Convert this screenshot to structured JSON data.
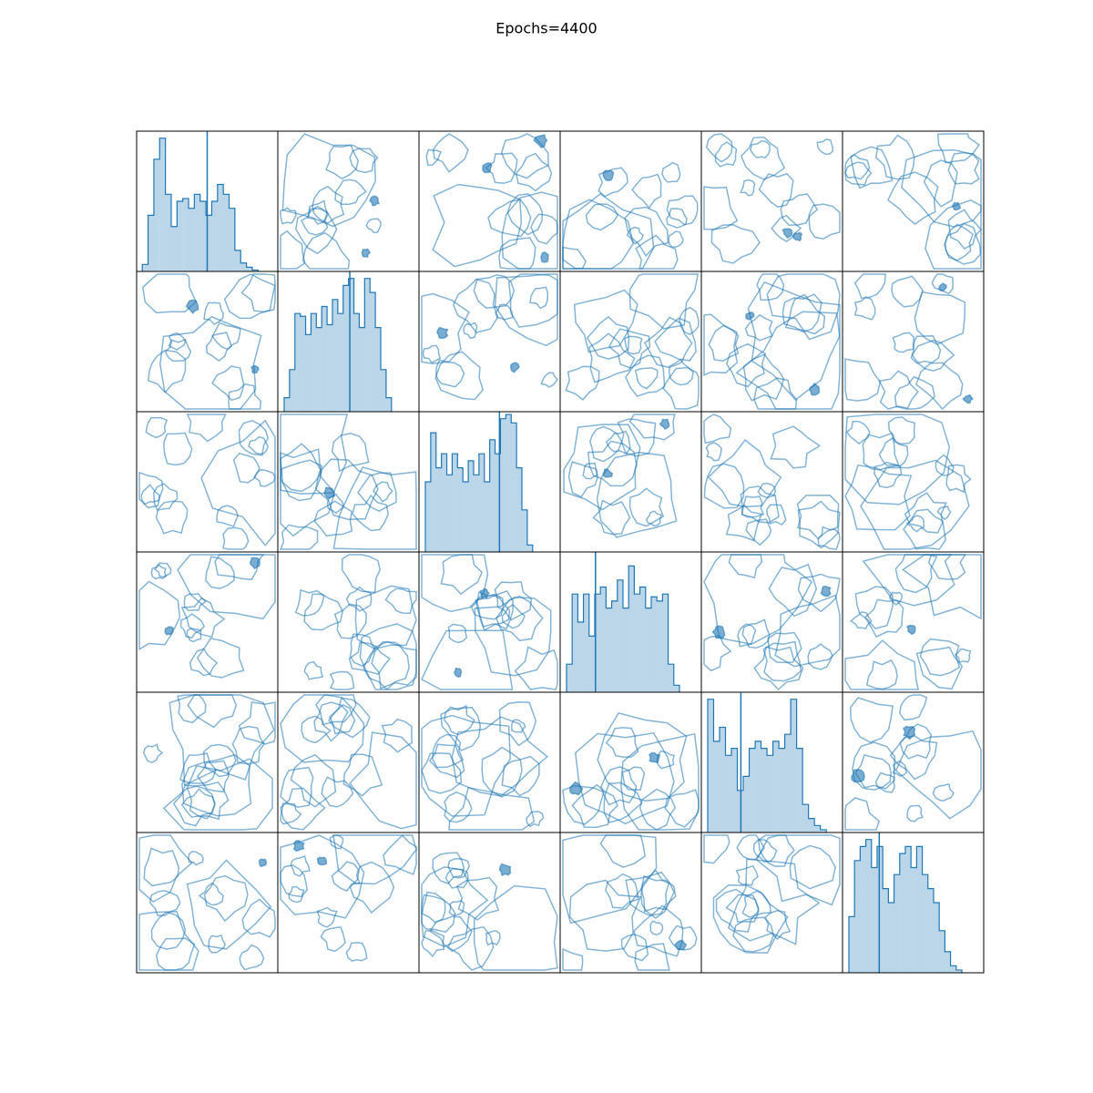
{
  "chart_data": {
    "type": "pairplot",
    "title": "Epochs=4400",
    "color": "#1f77b4",
    "xlim": [
      0,
      1
    ],
    "ylim": [
      0,
      1
    ],
    "histograms": [
      {
        "bins": [
          0.04,
          0.081,
          0.122,
          0.163,
          0.204,
          0.245,
          0.286,
          0.327,
          0.368,
          0.409,
          0.45,
          0.491,
          0.532,
          0.573,
          0.614,
          0.655,
          0.696,
          0.737,
          0.778,
          0.819,
          0.86
        ],
        "counts": [
          0.05,
          0.4,
          0.8,
          0.95,
          0.55,
          0.32,
          0.5,
          0.52,
          0.45,
          0.55,
          0.5,
          0.4,
          0.5,
          0.62,
          0.55,
          0.45,
          0.15,
          0.06,
          0.03,
          0.01
        ],
        "marker": 0.5
      },
      {
        "bins": [
          0.045,
          0.083,
          0.121,
          0.159,
          0.197,
          0.235,
          0.273,
          0.311,
          0.349,
          0.387,
          0.425,
          0.463,
          0.501,
          0.539,
          0.577,
          0.615,
          0.653,
          0.691,
          0.729,
          0.767,
          0.805
        ],
        "counts": [
          0.1,
          0.3,
          0.7,
          0.68,
          0.55,
          0.7,
          0.6,
          0.75,
          0.62,
          0.8,
          0.7,
          0.9,
          0.95,
          0.7,
          0.6,
          0.95,
          0.85,
          0.6,
          0.3,
          0.1
        ],
        "marker": 0.51
      },
      {
        "bins": [
          0.045,
          0.083,
          0.121,
          0.159,
          0.197,
          0.235,
          0.273,
          0.311,
          0.349,
          0.387,
          0.425,
          0.463,
          0.501,
          0.539,
          0.577,
          0.615,
          0.653,
          0.691,
          0.729,
          0.767,
          0.805
        ],
        "counts": [
          0.5,
          0.85,
          0.6,
          0.7,
          0.55,
          0.7,
          0.6,
          0.5,
          0.65,
          0.55,
          0.7,
          0.5,
          0.8,
          0.7,
          0.95,
          0.98,
          0.92,
          0.6,
          0.3,
          0.05
        ],
        "marker": 0.57
      },
      {
        "bins": [
          0.045,
          0.085,
          0.125,
          0.165,
          0.205,
          0.245,
          0.285,
          0.325,
          0.365,
          0.405,
          0.445,
          0.485,
          0.525,
          0.565,
          0.605,
          0.645,
          0.685,
          0.725,
          0.765,
          0.805,
          0.845
        ],
        "counts": [
          0.2,
          0.7,
          0.5,
          0.7,
          0.4,
          0.7,
          0.75,
          0.6,
          0.65,
          0.8,
          0.6,
          0.9,
          0.7,
          0.75,
          0.6,
          0.68,
          0.65,
          0.7,
          0.2,
          0.05
        ],
        "marker": 0.25
      },
      {
        "bins": [
          0.045,
          0.087,
          0.129,
          0.171,
          0.213,
          0.255,
          0.297,
          0.339,
          0.381,
          0.423,
          0.465,
          0.507,
          0.549,
          0.591,
          0.633,
          0.675,
          0.717,
          0.759,
          0.801,
          0.843,
          0.885
        ],
        "counts": [
          0.95,
          0.65,
          0.75,
          0.55,
          0.6,
          0.3,
          0.4,
          0.6,
          0.65,
          0.6,
          0.55,
          0.65,
          0.6,
          0.7,
          0.95,
          0.6,
          0.2,
          0.1,
          0.05,
          0.02
        ],
        "marker": 0.28
      },
      {
        "bins": [
          0.045,
          0.085,
          0.125,
          0.165,
          0.205,
          0.245,
          0.285,
          0.325,
          0.365,
          0.405,
          0.445,
          0.485,
          0.525,
          0.565,
          0.605,
          0.645,
          0.685,
          0.725,
          0.765,
          0.805,
          0.845
        ],
        "counts": [
          0.4,
          0.8,
          0.9,
          0.95,
          0.75,
          0.9,
          0.6,
          0.5,
          0.7,
          0.85,
          0.9,
          0.75,
          0.9,
          0.7,
          0.6,
          0.5,
          0.3,
          0.15,
          0.05,
          0.02
        ],
        "marker": 0.26
      }
    ]
  }
}
